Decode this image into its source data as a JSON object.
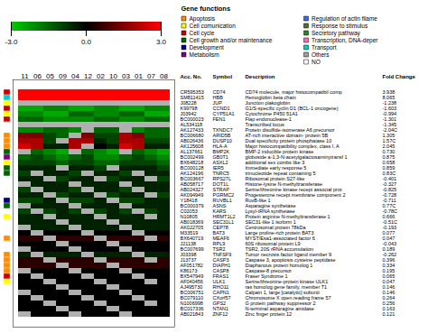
{
  "chart_data": {
    "type": "heatmap",
    "categories": [
      "11",
      "06",
      "05",
      "09",
      "04",
      "12",
      "02",
      "10",
      "03",
      "01",
      "07",
      "08"
    ],
    "tick_labels": "x",
    "values": [
      [
        3.0,
        3.0,
        3.0,
        3.0,
        3.0,
        3.0,
        3.0,
        3.0,
        3.0,
        3.0,
        3.0,
        3.0
      ],
      [
        3.0,
        3.0,
        3.0,
        3.0,
        3.0,
        3.0,
        3.0,
        3.0,
        3.0,
        3.0,
        3.0,
        3.0
      ],
      [
        -2.0,
        -2.0,
        -2.0,
        -2.0,
        -2.0,
        -2.0,
        -2.0,
        -2.0,
        -2.0,
        -2.0,
        -2.0,
        -2.0
      ],
      [
        -2.5,
        -2.5,
        -2.0,
        -2.0,
        -2.5,
        -2.5,
        -2.0,
        -2.0,
        -2.5,
        -2.5,
        -2.0,
        -2.0
      ],
      [
        -2.0,
        -2.0,
        -2.5,
        -2.5,
        -1.5,
        -1.5,
        -2.0,
        -2.0,
        -1.5,
        -1.5,
        -2.5,
        -2.5
      ],
      [
        -1.5,
        -1.5,
        -2.0,
        -2.0,
        -2.0,
        -2.0,
        -1.5,
        -1.5,
        -2.0,
        -2.0,
        -1.5,
        -1.5
      ],
      [
        -1.0,
        -1.0,
        -1.5,
        -1.5,
        -1.5,
        -1.5,
        -1.0,
        -1.0,
        -1.5,
        -1.5,
        -1.0,
        -1.0
      ],
      [
        -2.0,
        -2.0,
        -1.5,
        -1.5,
        -2.0,
        -2.0,
        -1.5,
        -1.5,
        -2.0,
        -2.0,
        -1.5,
        -1.5
      ],
      [
        1.5,
        1.5,
        -1.0,
        -1.5,
        1.5,
        1.5,
        -1.0,
        -1.0,
        2.0,
        1.5,
        -1.5,
        -1.5
      ],
      [
        2.0,
        2.0,
        -1.0,
        -1.0,
        2.0,
        2.0,
        -0.5,
        -1.0,
        2.0,
        2.0,
        -1.0,
        -1.0
      ],
      [
        2.5,
        2.0,
        -0.5,
        -0.5,
        2.0,
        2.5,
        0.0,
        -0.5,
        2.5,
        2.0,
        -0.5,
        -0.5
      ],
      [
        -2.0,
        -1.5,
        -2.0,
        -2.5,
        -2.0,
        -1.5,
        -2.0,
        -2.5,
        -2.0,
        -1.5,
        -2.0,
        -2.5
      ],
      [
        -1.5,
        -1.0,
        -1.5,
        -2.0,
        -1.5,
        -1.0,
        -2.0,
        -2.0,
        -1.5,
        -1.0,
        -1.5,
        -2.0
      ],
      [
        -1.0,
        -1.0,
        -1.0,
        -1.5,
        -1.0,
        -1.0,
        -1.5,
        -1.5,
        -1.0,
        -1.0,
        -1.0,
        -1.5
      ],
      [
        -0.5,
        -0.5,
        -0.5,
        -1.0,
        -0.5,
        -0.5,
        -1.0,
        -1.0,
        -0.5,
        -0.5,
        -0.5,
        -1.0
      ],
      [
        -1.0,
        -1.0,
        -0.5,
        -0.5,
        -1.0,
        -1.0,
        -0.5,
        -0.5,
        -1.0,
        -1.0,
        -0.5,
        -0.5
      ],
      [
        -0.5,
        -0.5,
        -0.5,
        -1.0,
        -0.5,
        -0.5,
        -1.0,
        -1.0,
        -0.5,
        -0.5,
        -0.5,
        -1.0
      ],
      [
        -0.5,
        -0.5,
        -0.5,
        -0.5,
        -0.5,
        -0.5,
        -0.5,
        -0.5,
        -0.5,
        -0.5,
        -0.5,
        -0.5
      ],
      [
        -1.0,
        -1.0,
        -0.5,
        -0.5,
        -1.0,
        -1.0,
        -0.5,
        -0.5,
        -1.0,
        -1.0,
        -0.5,
        -0.5
      ],
      [
        -0.5,
        -0.5,
        -1.0,
        -1.0,
        -0.5,
        -0.5,
        -1.0,
        -1.0,
        -0.5,
        -0.5,
        -1.0,
        -1.0
      ],
      [
        -1.0,
        -1.0,
        -0.5,
        -0.5,
        -1.0,
        -1.0,
        -0.5,
        -0.5,
        -1.0,
        -1.0,
        -0.5,
        -0.5
      ],
      [
        -0.5,
        -0.5,
        -0.5,
        -0.5,
        -0.5,
        -0.5,
        -0.5,
        -0.5,
        -0.5,
        -0.5,
        -0.5,
        -0.5
      ],
      [
        -1.0,
        -0.5,
        -1.0,
        -0.5,
        -1.0,
        -0.5,
        -1.0,
        -0.5,
        -1.0,
        -0.5,
        -1.0,
        -0.5
      ],
      [
        -0.5,
        -0.5,
        -0.5,
        -0.5,
        -0.5,
        -0.5,
        -0.5,
        -0.5,
        -0.5,
        -0.5,
        -0.5,
        -0.5
      ],
      [
        -0.5,
        -0.5,
        -0.5,
        -0.5,
        -0.5,
        -0.5,
        -0.5,
        -0.5,
        -0.5,
        -0.5,
        -0.5,
        -0.5
      ],
      [
        -0.5,
        -0.5,
        -0.5,
        -0.5,
        -0.5,
        -0.5,
        -0.5,
        -0.5,
        -0.5,
        -0.5,
        -0.5,
        -0.5
      ],
      [
        0.0,
        0.0,
        0.0,
        0.0,
        0.0,
        0.0,
        0.0,
        0.0,
        0.0,
        0.0,
        0.0,
        0.0
      ],
      [
        0.5,
        0.5,
        0.5,
        0.5,
        0.5,
        0.5,
        0.5,
        0.5,
        0.5,
        0.5,
        0.5,
        0.5
      ],
      [
        0.0,
        0.0,
        0.0,
        0.0,
        0.0,
        0.0,
        0.0,
        0.0,
        0.0,
        0.0,
        0.0,
        0.0
      ],
      [
        0.0,
        0.0,
        0.0,
        0.0,
        0.0,
        0.0,
        0.0,
        0.0,
        0.0,
        0.0,
        0.0,
        0.0
      ],
      [
        -0.5,
        -0.5,
        -0.5,
        -0.5,
        -0.5,
        -0.5,
        -0.5,
        -0.5,
        -0.5,
        -0.5,
        -0.5,
        -0.5
      ],
      [
        0.5,
        0.5,
        0.5,
        0.5,
        0.5,
        0.5,
        0.5,
        0.5,
        0.5,
        0.5,
        0.5,
        0.5
      ],
      [
        0.5,
        0.5,
        0.5,
        0.5,
        0.5,
        0.5,
        0.5,
        0.5,
        0.5,
        0.5,
        0.5,
        0.5
      ],
      [
        0.0,
        0.0,
        0.0,
        0.0,
        0.0,
        0.0,
        0.0,
        0.0,
        0.0,
        0.0,
        0.0,
        0.0
      ],
      [
        0.0,
        0.0,
        0.0,
        0.0,
        0.0,
        0.0,
        0.0,
        0.0,
        0.0,
        0.0,
        0.0,
        0.0
      ],
      [
        0.0,
        0.0,
        0.0,
        0.0,
        0.0,
        0.0,
        0.0,
        0.0,
        0.0,
        0.0,
        0.0,
        0.0
      ],
      [
        0.0,
        0.0,
        0.0,
        0.0,
        0.0,
        0.0,
        0.0,
        0.0,
        0.0,
        0.0,
        0.0,
        0.0
      ],
      [
        0.0,
        0.0,
        0.0,
        0.0,
        0.0,
        0.0,
        0.0,
        0.0,
        0.0,
        0.0,
        0.0,
        0.0
      ],
      [
        0.0,
        0.0,
        0.0,
        0.0,
        0.0,
        0.0,
        0.0,
        0.0,
        0.0,
        0.0,
        0.0,
        0.0
      ],
      [
        0.0,
        0.0,
        0.0,
        0.0,
        0.0,
        0.0,
        0.0,
        0.0,
        0.0,
        0.0,
        0.0,
        0.0
      ],
      [
        0.0,
        0.0,
        0.0,
        0.0,
        0.0,
        0.0,
        0.0,
        0.0,
        0.0,
        0.0,
        0.0,
        0.0
      ],
      [
        0.0,
        0.0,
        0.0,
        0.0,
        0.0,
        0.0,
        0.0,
        0.0,
        0.0,
        0.0,
        0.0,
        0.0
      ]
    ],
    "color_domain": [
      -3.0,
      0.0,
      3.0
    ],
    "colorscale": [
      "#00CC00",
      "#000000",
      "#FF0000"
    ],
    "colorbar_ticks": [
      {
        "value": -3.0,
        "label": "-3.0"
      },
      {
        "value": 0.0,
        "label": "0.0"
      },
      {
        "value": 3.0,
        "label": "3.0"
      }
    ],
    "missing_color": "#B0B0B0",
    "missing_cells": [
      [
        2,
        0
      ],
      [
        2,
        1
      ],
      [
        2,
        2
      ],
      [
        2,
        3
      ],
      [
        2,
        4
      ],
      [
        2,
        5
      ],
      [
        2,
        6
      ],
      [
        2,
        7
      ],
      [
        2,
        8
      ],
      [
        2,
        9
      ],
      [
        2,
        10
      ],
      [
        2,
        11
      ],
      [
        6,
        0
      ],
      [
        6,
        1
      ],
      [
        6,
        2
      ],
      [
        6,
        3
      ],
      [
        6,
        4
      ],
      [
        6,
        5
      ],
      [
        6,
        6
      ],
      [
        6,
        7
      ],
      [
        6,
        8
      ],
      [
        6,
        9
      ],
      [
        6,
        10
      ],
      [
        6,
        11
      ],
      [
        7,
        5
      ],
      [
        7,
        8
      ],
      [
        8,
        4
      ],
      [
        9,
        3
      ],
      [
        10,
        5
      ],
      [
        11,
        0
      ],
      [
        11,
        4
      ],
      [
        11,
        8
      ],
      [
        14,
        3
      ],
      [
        14,
        7
      ],
      [
        15,
        1
      ],
      [
        15,
        5
      ],
      [
        15,
        9
      ],
      [
        16,
        2
      ],
      [
        16,
        6
      ],
      [
        16,
        10
      ],
      [
        17,
        0
      ],
      [
        17,
        4
      ],
      [
        17,
        8
      ],
      [
        18,
        1
      ],
      [
        18,
        5
      ],
      [
        18,
        9
      ],
      [
        19,
        2
      ],
      [
        19,
        6
      ],
      [
        19,
        10
      ],
      [
        20,
        3
      ],
      [
        20,
        7
      ],
      [
        21,
        0
      ],
      [
        21,
        4
      ],
      [
        21,
        8
      ],
      [
        22,
        1
      ],
      [
        22,
        5
      ],
      [
        22,
        9
      ],
      [
        23,
        2
      ],
      [
        23,
        6
      ],
      [
        23,
        10
      ],
      [
        24,
        3
      ],
      [
        24,
        7
      ],
      [
        25,
        0
      ],
      [
        25,
        4
      ],
      [
        25,
        8
      ],
      [
        26,
        1
      ],
      [
        26,
        5
      ],
      [
        26,
        9
      ],
      [
        27,
        2
      ],
      [
        27,
        6
      ],
      [
        27,
        10
      ],
      [
        28,
        3
      ],
      [
        28,
        7
      ],
      [
        29,
        0
      ],
      [
        29,
        4
      ],
      [
        29,
        8
      ],
      [
        30,
        1
      ],
      [
        30,
        5
      ],
      [
        30,
        9
      ],
      [
        31,
        2
      ],
      [
        31,
        6
      ],
      [
        31,
        10
      ],
      [
        32,
        3
      ],
      [
        32,
        7
      ],
      [
        33,
        0
      ],
      [
        33,
        4
      ],
      [
        33,
        8
      ],
      [
        34,
        1
      ],
      [
        34,
        5
      ],
      [
        34,
        9
      ],
      [
        35,
        2
      ],
      [
        35,
        6
      ],
      [
        35,
        10
      ],
      [
        36,
        3
      ],
      [
        36,
        7
      ],
      [
        37,
        0
      ],
      [
        37,
        4
      ],
      [
        37,
        8
      ],
      [
        38,
        1
      ],
      [
        38,
        5
      ],
      [
        38,
        9
      ],
      [
        39,
        2
      ],
      [
        39,
        6
      ],
      [
        39,
        10
      ],
      [
        40,
        3
      ],
      [
        40,
        7
      ],
      [
        41,
        0
      ],
      [
        41,
        4
      ],
      [
        41,
        8
      ]
    ],
    "row_colors": [
      "#CC0000",
      "#00CED1",
      "#FFFF00",
      "#CC0000",
      "#FFFF00",
      "#CC0000",
      "#FFFFFF",
      "#FFFFFF",
      "#FF8C00",
      "#FF8C00",
      "#FF8C00",
      "#006400",
      "#800080",
      "#FFFF00",
      "#006400",
      "#006400",
      "#FFFFFF",
      "#FFFFFF",
      "#FFFFFF",
      "#FFFFFF",
      "#000080",
      "#006400",
      "#FFFFFF",
      "#FFFF00",
      "#FFFFFF",
      "#FFFFFF",
      "#FFFFFF",
      "#FF8C00",
      "#FFFFFF",
      "#FFFFFF",
      "#FF8C00",
      "#FF8C00",
      "#FF8C00",
      "#FF8C00",
      "#CC0000",
      "#FFFF00",
      "#FFFFFF",
      "#FFFFFF",
      "#FFFFFF",
      "#FFFFFF",
      "#FFFFFF",
      "#FFFFFF"
    ],
    "legend_title": "Gene functions",
    "legend_columns": [
      [
        {
          "name": "Apoptosis",
          "color": "#FF8C00"
        },
        {
          "name": "Cell comunication",
          "color": "#FFFF00"
        },
        {
          "name": "Cell cycle",
          "color": "#CC0000"
        },
        {
          "name": "Cell growth and/or maintenance",
          "color": "#006400"
        },
        {
          "name": "Development",
          "color": "#000080"
        },
        {
          "name": "Metabolism",
          "color": "#800080"
        }
      ],
      [
        {
          "name": "Regulation of actin filame",
          "color": "#4169E1"
        },
        {
          "name": "Response to stimulus",
          "color": "#556B2F"
        },
        {
          "name": "Secretory pathway",
          "color": "#228B22"
        },
        {
          "name": "Transcription, DNA-deper",
          "color": "#FF69B4"
        },
        {
          "name": "Transport",
          "color": "#00CED1"
        },
        {
          "name": "Others",
          "color": "#A0A0A0"
        },
        {
          "name": "NO",
          "color": "#FFFFFF"
        }
      ]
    ],
    "table": {
      "columns": [
        "Acc. No.",
        "Symbol",
        "Description",
        "Fold Change"
      ],
      "rows": [
        [
          "CR595353",
          "CD74",
          "CD74 molecule, major histocompatibil comp",
          "3.938"
        ],
        [
          "SM811415",
          "HBB",
          "Hemoglobin beta chain",
          "8.065"
        ],
        [
          "J08228",
          "JUP",
          "Junction plakoglobin",
          "-1.238"
        ],
        [
          "K99798",
          "CCND1",
          "G1/S-specific cyclin D1 (BCL-1 oncogene)",
          "-1.603"
        ],
        [
          "J03942",
          "CYP51A1",
          "Cytochrome P450 51A1",
          "-0.994"
        ],
        [
          "BC000023",
          "FEN1",
          "Flap endonuclease-1",
          "-1.301"
        ],
        [
          "AL534118",
          null,
          "Transcribed locus",
          "-1.345"
        ],
        [
          "AK127433",
          "TXNDC7",
          "Protein disulfide-isomerase A6 precursor",
          "-2.04C"
        ],
        [
          "BC006680",
          "ARID5B",
          "AT-rich interactive domain- protein 5B",
          "1.305"
        ],
        [
          "AB026436",
          "DUSP10",
          "Dual specificity protein phosphatase 10",
          "1.57C"
        ],
        [
          "AK125608",
          "HLA-A",
          "Major histocompatibility complex, class I, A",
          "2.045"
        ],
        [
          "AL137661",
          "BMP2K",
          "BMP-2 inducible protein kinase",
          "0.730"
        ],
        [
          "BC002499",
          "GB0T1",
          "globoside a-1,3-N-acetylgalactosaminytransf 1",
          "0.875"
        ],
        [
          "BX648218",
          "ASXL2",
          "additional sex combs like 3",
          "0.658"
        ],
        [
          "BC000128",
          "IER5",
          "Immediate early response 5",
          "0.859"
        ],
        [
          "AK124196",
          "TNRC5",
          "trinucleotide repeat containing 5",
          "0.83C"
        ],
        [
          "BC003667",
          "RPS27L",
          "Ribosomal protein S27-like",
          "-0.401"
        ],
        [
          "AB058717",
          "DOT1L",
          "Histone-lysine N-methyltransferase",
          "-0.327"
        ],
        [
          "AB024327",
          "STRAP",
          "Serine/threonine kinase recept associal prot",
          "-0.825"
        ],
        [
          "AK094949",
          "PGRMC2",
          "Progesterone recept membrane component 2",
          "-0.728"
        ],
        [
          "Y18418",
          "RUVBL1",
          "RuvB-like 1",
          "-0.711"
        ],
        [
          "BC000379",
          "ASNS",
          "Asparagine synthetase",
          "0.77C"
        ],
        [
          "C02053",
          "KARS",
          "Lysyl-tRNA synthetase",
          "-0.78C"
        ],
        [
          "N10805",
          "HRMT1L2",
          "Protein arginine N-methyltransferase 1",
          "0.666"
        ],
        [
          "AB018369",
          "SEC31L1",
          "SEC31-like 1 isoform 1",
          "-0.51C"
        ],
        [
          "AK022705",
          "CEP78",
          "Centrosomal protein 78kDa",
          "-0.193"
        ],
        [
          "M33519",
          "BAT3",
          "Large proline-rich protein BAT3",
          "0.077"
        ],
        [
          "BX640719",
          "MEAF6",
          "MYST/Esa1-associated factor 6",
          "0.047"
        ],
        [
          "J21138",
          "RPL9",
          "60S ribosomal protein L9",
          "-0.043"
        ],
        [
          "BC007699",
          "TSR2",
          "TSR2, 20S rRNA accumulation",
          "0.189"
        ],
        [
          "J03398",
          "TNFSF9",
          "Tumor necrosis factor ligand member 9",
          "-0.262"
        ],
        [
          "J13737",
          "CASP3",
          "Caspase 3, apoptosis cysteine peptidase",
          "0.396"
        ],
        [
          "AF051782",
          "DIAPH1",
          "Diaphanous protein homolog 1",
          "0.334"
        ],
        [
          "K86173",
          "CASP8",
          "Caspase-8 precursor",
          "0.195"
        ],
        [
          "BX547949",
          "FRAS1",
          "Fraser Syndrome 1",
          "0.065"
        ],
        [
          "AF040456",
          "ULK1",
          "Serine/threonine-protein kinase ULK1",
          "0.047"
        ],
        [
          "AJ495730",
          "RHO11",
          "ras homolog gene family, member T1",
          "0.146"
        ],
        [
          "BC006751",
          "CAPN1",
          "Calpain 1, large [catalytic] subunit",
          "0.146"
        ],
        [
          "BC079110",
          "CXorf57",
          "Chromosome X open reading frame 57",
          "0.264"
        ],
        [
          "N1006998",
          "GPS2",
          "G protein pathway suppressor 2",
          "0.256"
        ],
        [
          "BC017336",
          "NTAN1",
          "N-terminal asparagine amidase",
          "0.163"
        ],
        [
          "AB021843",
          "ZNF12",
          "Zinc finger protein 12",
          "0.121"
        ]
      ]
    }
  }
}
